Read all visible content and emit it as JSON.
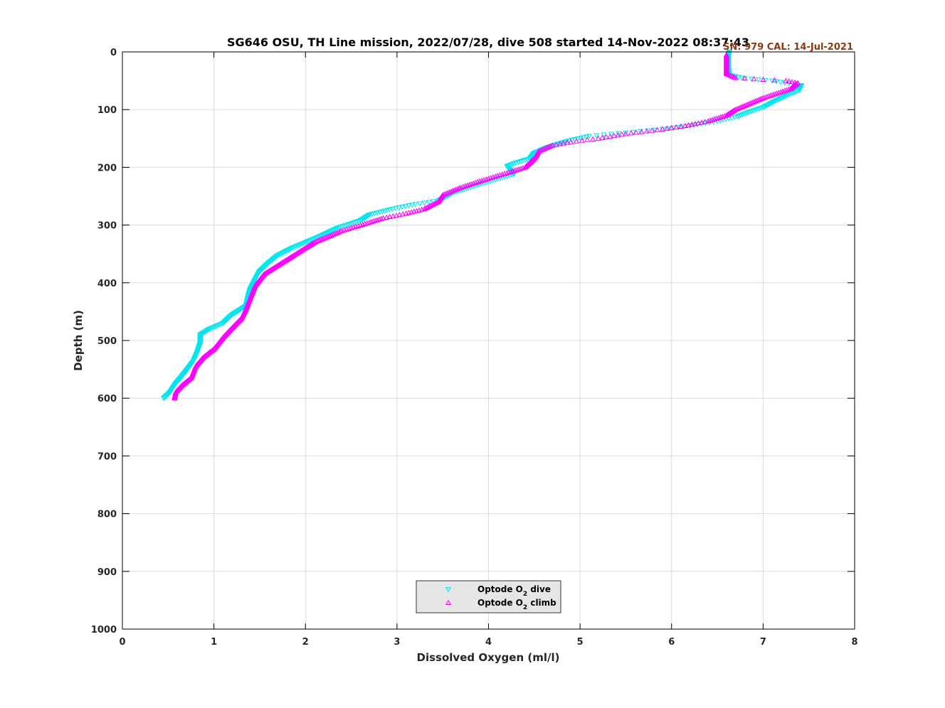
{
  "chart_data": {
    "type": "scatter",
    "title": "SG646 OSU, TH Line mission, 2022/07/28, dive 508 started 14-Nov-2022 08:37:43",
    "calibration_note": "SN: 979  CAL: 14-Jul-2021",
    "xlabel": "Dissolved Oxygen (ml/l)",
    "ylabel": "Depth (m)",
    "xlim": [
      0,
      8
    ],
    "ylim": [
      0,
      1000
    ],
    "y_reversed": true,
    "grid": true,
    "xticks": [
      "0",
      "1",
      "2",
      "3",
      "4",
      "5",
      "6",
      "7",
      "8"
    ],
    "yticks": [
      "0",
      "100",
      "200",
      "300",
      "400",
      "500",
      "600",
      "700",
      "800",
      "900",
      "1000"
    ],
    "legend_position": "bottom-center",
    "series": [
      {
        "name": "dive",
        "legend_prefix": "Optode O",
        "legend_sub": "2",
        "legend_suffix": " dive",
        "marker": "triangle-down",
        "color": "#00e5ee",
        "points": [
          [
            6.63,
            0
          ],
          [
            6.62,
            10
          ],
          [
            6.62,
            25
          ],
          [
            6.63,
            40
          ],
          [
            6.8,
            46
          ],
          [
            7.1,
            50
          ],
          [
            7.42,
            58
          ],
          [
            7.4,
            66
          ],
          [
            7.25,
            76
          ],
          [
            7.12,
            86
          ],
          [
            7.0,
            96
          ],
          [
            6.85,
            104
          ],
          [
            6.72,
            112
          ],
          [
            6.5,
            120
          ],
          [
            6.2,
            128
          ],
          [
            5.9,
            134
          ],
          [
            5.5,
            140
          ],
          [
            5.1,
            146
          ],
          [
            4.85,
            155
          ],
          [
            4.65,
            165
          ],
          [
            4.5,
            175
          ],
          [
            4.45,
            185
          ],
          [
            4.3,
            192
          ],
          [
            4.2,
            198
          ],
          [
            4.28,
            212
          ],
          [
            4.1,
            220
          ],
          [
            3.85,
            232
          ],
          [
            3.6,
            245
          ],
          [
            3.45,
            258
          ],
          [
            3.2,
            264
          ],
          [
            2.95,
            272
          ],
          [
            2.7,
            282
          ],
          [
            2.6,
            292
          ],
          [
            2.35,
            305
          ],
          [
            2.15,
            320
          ],
          [
            2.0,
            330
          ],
          [
            1.85,
            340
          ],
          [
            1.7,
            352
          ],
          [
            1.6,
            365
          ],
          [
            1.5,
            380
          ],
          [
            1.45,
            395
          ],
          [
            1.4,
            410
          ],
          [
            1.38,
            420
          ],
          [
            1.35,
            440
          ],
          [
            1.2,
            455
          ],
          [
            1.1,
            470
          ],
          [
            0.95,
            480
          ],
          [
            0.85,
            490
          ],
          [
            0.85,
            505
          ],
          [
            0.82,
            520
          ],
          [
            0.78,
            535
          ],
          [
            0.72,
            548
          ],
          [
            0.65,
            562
          ],
          [
            0.58,
            575
          ],
          [
            0.52,
            590
          ],
          [
            0.45,
            600
          ]
        ]
      },
      {
        "name": "climb",
        "legend_prefix": "Optode O",
        "legend_sub": "2",
        "legend_suffix": " climb",
        "marker": "triangle-up",
        "color": "#ff00ff",
        "points": [
          [
            6.6,
            5
          ],
          [
            6.6,
            20
          ],
          [
            6.6,
            38
          ],
          [
            6.7,
            45
          ],
          [
            7.0,
            48
          ],
          [
            7.25,
            50
          ],
          [
            7.38,
            54
          ],
          [
            7.3,
            64
          ],
          [
            7.15,
            72
          ],
          [
            7.0,
            80
          ],
          [
            6.85,
            90
          ],
          [
            6.7,
            100
          ],
          [
            6.6,
            110
          ],
          [
            6.4,
            120
          ],
          [
            6.15,
            128
          ],
          [
            5.9,
            134
          ],
          [
            5.5,
            142
          ],
          [
            5.2,
            150
          ],
          [
            4.9,
            156
          ],
          [
            4.7,
            162
          ],
          [
            4.55,
            172
          ],
          [
            4.5,
            185
          ],
          [
            4.4,
            200
          ],
          [
            4.2,
            210
          ],
          [
            3.95,
            222
          ],
          [
            3.7,
            235
          ],
          [
            3.5,
            248
          ],
          [
            3.45,
            260
          ],
          [
            3.3,
            272
          ],
          [
            3.1,
            280
          ],
          [
            2.85,
            288
          ],
          [
            2.65,
            298
          ],
          [
            2.4,
            310
          ],
          [
            2.25,
            320
          ],
          [
            2.1,
            330
          ],
          [
            1.9,
            350
          ],
          [
            1.7,
            370
          ],
          [
            1.55,
            385
          ],
          [
            1.45,
            405
          ],
          [
            1.4,
            425
          ],
          [
            1.35,
            445
          ],
          [
            1.3,
            462
          ],
          [
            1.2,
            478
          ],
          [
            1.1,
            495
          ],
          [
            1.0,
            515
          ],
          [
            0.88,
            530
          ],
          [
            0.8,
            545
          ],
          [
            0.75,
            565
          ],
          [
            0.65,
            578
          ],
          [
            0.58,
            590
          ],
          [
            0.57,
            600
          ]
        ]
      }
    ]
  }
}
